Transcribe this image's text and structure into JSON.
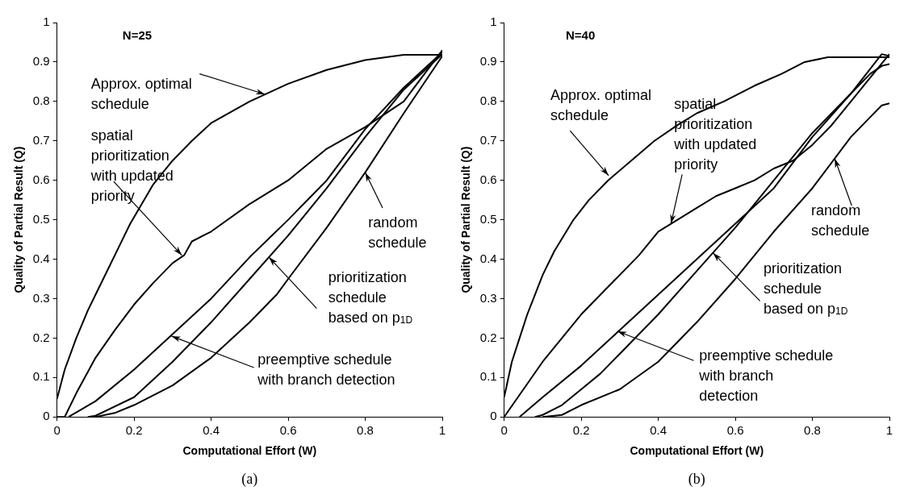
{
  "chart_data": [
    {
      "type": "line",
      "title": "N=25",
      "xlabel": "Computational Effort (W)",
      "ylabel": "Quality of Partial Result (Q)",
      "xlim": [
        0,
        1
      ],
      "ylim": [
        0,
        1
      ],
      "xticks": [
        0,
        0.2,
        0.4,
        0.6,
        0.8,
        1
      ],
      "yticks": [
        0,
        0.1,
        0.2,
        0.3,
        0.4,
        0.5,
        0.6,
        0.7,
        0.8,
        0.9,
        1
      ],
      "grid": false,
      "legend": false,
      "series": [
        {
          "color": "#000000",
          "x": [
            0,
            0.02,
            0.05,
            0.08,
            0.1,
            0.13,
            0.16,
            0.19,
            0.25,
            0.3,
            0.35,
            0.4,
            0.5,
            0.6,
            0.7,
            0.8,
            0.9,
            1
          ],
          "values": [
            0.046,
            0.12,
            0.2,
            0.27,
            0.31,
            0.37,
            0.43,
            0.49,
            0.59,
            0.65,
            0.7,
            0.745,
            0.8,
            0.845,
            0.88,
            0.905,
            0.918,
            0.918
          ]
        },
        {
          "color": "#000000",
          "x": [
            0,
            0.02,
            0.05,
            0.1,
            0.15,
            0.2,
            0.25,
            0.3,
            0.33,
            0.35,
            0.4,
            0.5,
            0.6,
            0.7,
            0.8,
            0.9,
            1
          ],
          "values": [
            0,
            0,
            0.06,
            0.15,
            0.22,
            0.285,
            0.34,
            0.39,
            0.41,
            0.445,
            0.47,
            0.54,
            0.6,
            0.68,
            0.735,
            0.8,
            0.93
          ]
        },
        {
          "color": "#000000",
          "x": [
            0.03,
            0.1,
            0.2,
            0.3,
            0.4,
            0.5,
            0.6,
            0.7,
            0.8,
            0.9,
            1
          ],
          "values": [
            0,
            0.04,
            0.12,
            0.21,
            0.3,
            0.405,
            0.5,
            0.6,
            0.73,
            0.835,
            0.925
          ]
        },
        {
          "color": "#000000",
          "x": [
            0.08,
            0.1,
            0.2,
            0.3,
            0.4,
            0.5,
            0.6,
            0.7,
            0.8,
            0.9,
            1
          ],
          "values": [
            0,
            0.003,
            0.05,
            0.14,
            0.24,
            0.35,
            0.46,
            0.58,
            0.71,
            0.83,
            0.92
          ]
        },
        {
          "color": "#000000",
          "x": [
            0.1,
            0.15,
            0.2,
            0.3,
            0.4,
            0.5,
            0.57,
            0.6,
            0.7,
            0.8,
            0.9,
            1
          ],
          "values": [
            0,
            0.01,
            0.03,
            0.08,
            0.15,
            0.24,
            0.31,
            0.35,
            0.48,
            0.62,
            0.77,
            0.915
          ]
        }
      ],
      "annotations": [
        {
          "text": "Approx. optimal\nschedule",
          "x": 0.54,
          "y": 0.818
        },
        {
          "text": "spatial\nprioritization\nwith updated\npriority",
          "x": 0.324,
          "y": 0.41
        },
        {
          "text": "random\nschedule",
          "x": 0.8,
          "y": 0.62
        },
        {
          "text": "prioritization\nschedule\nbased on p$_{1D}$",
          "x": 0.55,
          "y": 0.405
        },
        {
          "text": "preemptive schedule\nwith branch detection",
          "x": 0.297,
          "y": 0.205
        },
        "(a)"
      ]
    },
    {
      "type": "line",
      "title": "N=40",
      "xlabel": "Computational Effort (W)",
      "ylabel": "Quality of Partial Result (Q)",
      "xlim": [
        0,
        1
      ],
      "ylim": [
        0,
        1
      ],
      "xticks": [
        0,
        0.2,
        0.4,
        0.6,
        0.8,
        1
      ],
      "yticks": [
        0,
        0.1,
        0.2,
        0.3,
        0.4,
        0.5,
        0.6,
        0.7,
        0.8,
        0.9,
        1
      ],
      "grid": false,
      "legend": false,
      "series": [
        {
          "color": "#000000",
          "x": [
            0,
            0.02,
            0.04,
            0.06,
            0.08,
            0.1,
            0.13,
            0.18,
            0.22,
            0.27,
            0.33,
            0.39,
            0.45,
            0.5,
            0.57,
            0.65,
            0.72,
            0.78,
            0.84,
            1
          ],
          "values": [
            0.05,
            0.14,
            0.2,
            0.26,
            0.31,
            0.36,
            0.42,
            0.5,
            0.55,
            0.6,
            0.65,
            0.7,
            0.74,
            0.77,
            0.8,
            0.84,
            0.87,
            0.9,
            0.912,
            0.912
          ]
        },
        {
          "color": "#000000",
          "x": [
            0,
            0.05,
            0.1,
            0.15,
            0.2,
            0.25,
            0.3,
            0.35,
            0.4,
            0.45,
            0.5,
            0.55,
            0.6,
            0.65,
            0.7,
            0.75,
            0.8,
            0.85,
            0.9,
            0.95,
            1
          ],
          "values": [
            0,
            0.07,
            0.14,
            0.2,
            0.26,
            0.31,
            0.36,
            0.41,
            0.47,
            0.5,
            0.53,
            0.56,
            0.58,
            0.6,
            0.63,
            0.65,
            0.69,
            0.74,
            0.8,
            0.86,
            0.92
          ]
        },
        {
          "color": "#000000",
          "x": [
            0.04,
            0.1,
            0.2,
            0.3,
            0.4,
            0.5,
            0.6,
            0.7,
            0.8,
            0.9,
            0.98,
            1
          ],
          "values": [
            0,
            0.05,
            0.13,
            0.22,
            0.31,
            0.4,
            0.49,
            0.58,
            0.71,
            0.82,
            0.92,
            0.915
          ]
        },
        {
          "color": "#000000",
          "x": [
            0.08,
            0.1,
            0.15,
            0.2,
            0.25,
            0.3,
            0.4,
            0.5,
            0.6,
            0.7,
            0.8,
            0.9,
            0.95,
            0.98,
            1
          ],
          "values": [
            0,
            0.005,
            0.03,
            0.07,
            0.11,
            0.16,
            0.26,
            0.37,
            0.48,
            0.6,
            0.72,
            0.82,
            0.87,
            0.89,
            0.895
          ]
        },
        {
          "color": "#000000",
          "x": [
            0.1,
            0.15,
            0.2,
            0.3,
            0.4,
            0.5,
            0.6,
            0.7,
            0.8,
            0.9,
            0.95,
            0.98,
            1
          ],
          "values": [
            0,
            0.005,
            0.03,
            0.07,
            0.14,
            0.24,
            0.35,
            0.47,
            0.58,
            0.71,
            0.76,
            0.79,
            0.795
          ]
        }
      ],
      "annotations": [
        {
          "text": "Approx. optimal\nschedule",
          "x": 0.271,
          "y": 0.612
        },
        {
          "text": "spatial\nprioritization\nwith updated\npriority",
          "x": 0.433,
          "y": 0.49
        },
        {
          "text": "random\nschedule",
          "x": 0.858,
          "y": 0.655
        },
        {
          "text": "prioritization\nschedule\nbased on p$_{1D}$",
          "x": 0.542,
          "y": 0.416
        },
        {
          "text": "preemptive schedule\nwith branch\ndetection",
          "x": 0.294,
          "y": 0.217
        },
        "(b)"
      ]
    }
  ]
}
